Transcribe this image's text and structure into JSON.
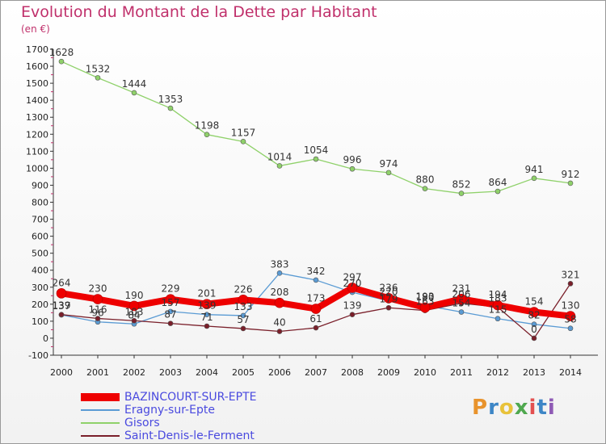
{
  "header": {
    "title": "Evolution du Montant de la Dette par Habitant",
    "unit": "(en €)"
  },
  "logo": {
    "text": "Proxiti",
    "colors": [
      "#e8932c",
      "#3d86c6",
      "#e8c23a",
      "#4fa84f",
      "#e35050",
      "#3d86c6",
      "#8e5ab5"
    ]
  },
  "chart_data": {
    "type": "line",
    "x": [
      "2000",
      "2001",
      "2002",
      "2003",
      "2004",
      "2005",
      "2006",
      "2007",
      "2008",
      "2009",
      "2010",
      "2011",
      "2012",
      "2013",
      "2014"
    ],
    "ylim": [
      -100,
      1700
    ],
    "yticks": [
      -100,
      0,
      100,
      200,
      300,
      400,
      500,
      600,
      700,
      800,
      900,
      1000,
      1100,
      1200,
      1300,
      1400,
      1500,
      1600,
      1700
    ],
    "grid": false,
    "legend": "bottom-left",
    "series": [
      {
        "name": "Gisors",
        "color": "#8fd16a",
        "values": [
          1628,
          1532,
          1444,
          1353,
          1198,
          1157,
          1014,
          1054,
          996,
          974,
          880,
          852,
          864,
          941,
          912
        ],
        "labels": [
          "1628",
          "1532",
          "1444",
          "1353",
          "1198",
          "1157",
          "1014",
          "1054",
          "996",
          "974",
          "880",
          "852",
          "864",
          "941",
          "912"
        ]
      },
      {
        "name": "Eragny-sur-Epte",
        "color": "#5a9bd4",
        "values": [
          137,
          96,
          84,
          157,
          139,
          133,
          383,
          342,
          270,
          220,
          193,
          154,
          115,
          82,
          58
        ],
        "labels": [
          "137",
          "96",
          "84",
          "157",
          "139",
          "133",
          "383",
          "342",
          "270",
          "220",
          "193",
          "154",
          "115",
          "82",
          "58"
        ]
      },
      {
        "name": "Saint-Denis-le-Ferment",
        "color": "#7a1f2a",
        "values": [
          139,
          116,
          103,
          87,
          71,
          57,
          40,
          61,
          139,
          179,
          163,
          206,
          183,
          0,
          321
        ],
        "labels": [
          "139",
          "116",
          "103",
          "87",
          "71",
          "57",
          "40",
          "61",
          "139",
          "179",
          "163",
          "206",
          "183",
          "0",
          "321"
        ]
      },
      {
        "name": "BAZINCOURT-SUR-EPTE",
        "color": "#ee0000",
        "values": [
          264,
          230,
          190,
          229,
          201,
          226,
          208,
          173,
          297,
          236,
          180,
          231,
          194,
          154,
          130
        ],
        "labels": [
          "264",
          "230",
          "190",
          "229",
          "201",
          "226",
          "208",
          "173",
          "297",
          "236",
          "180",
          "231",
          "194",
          "154",
          "130"
        ]
      }
    ]
  }
}
